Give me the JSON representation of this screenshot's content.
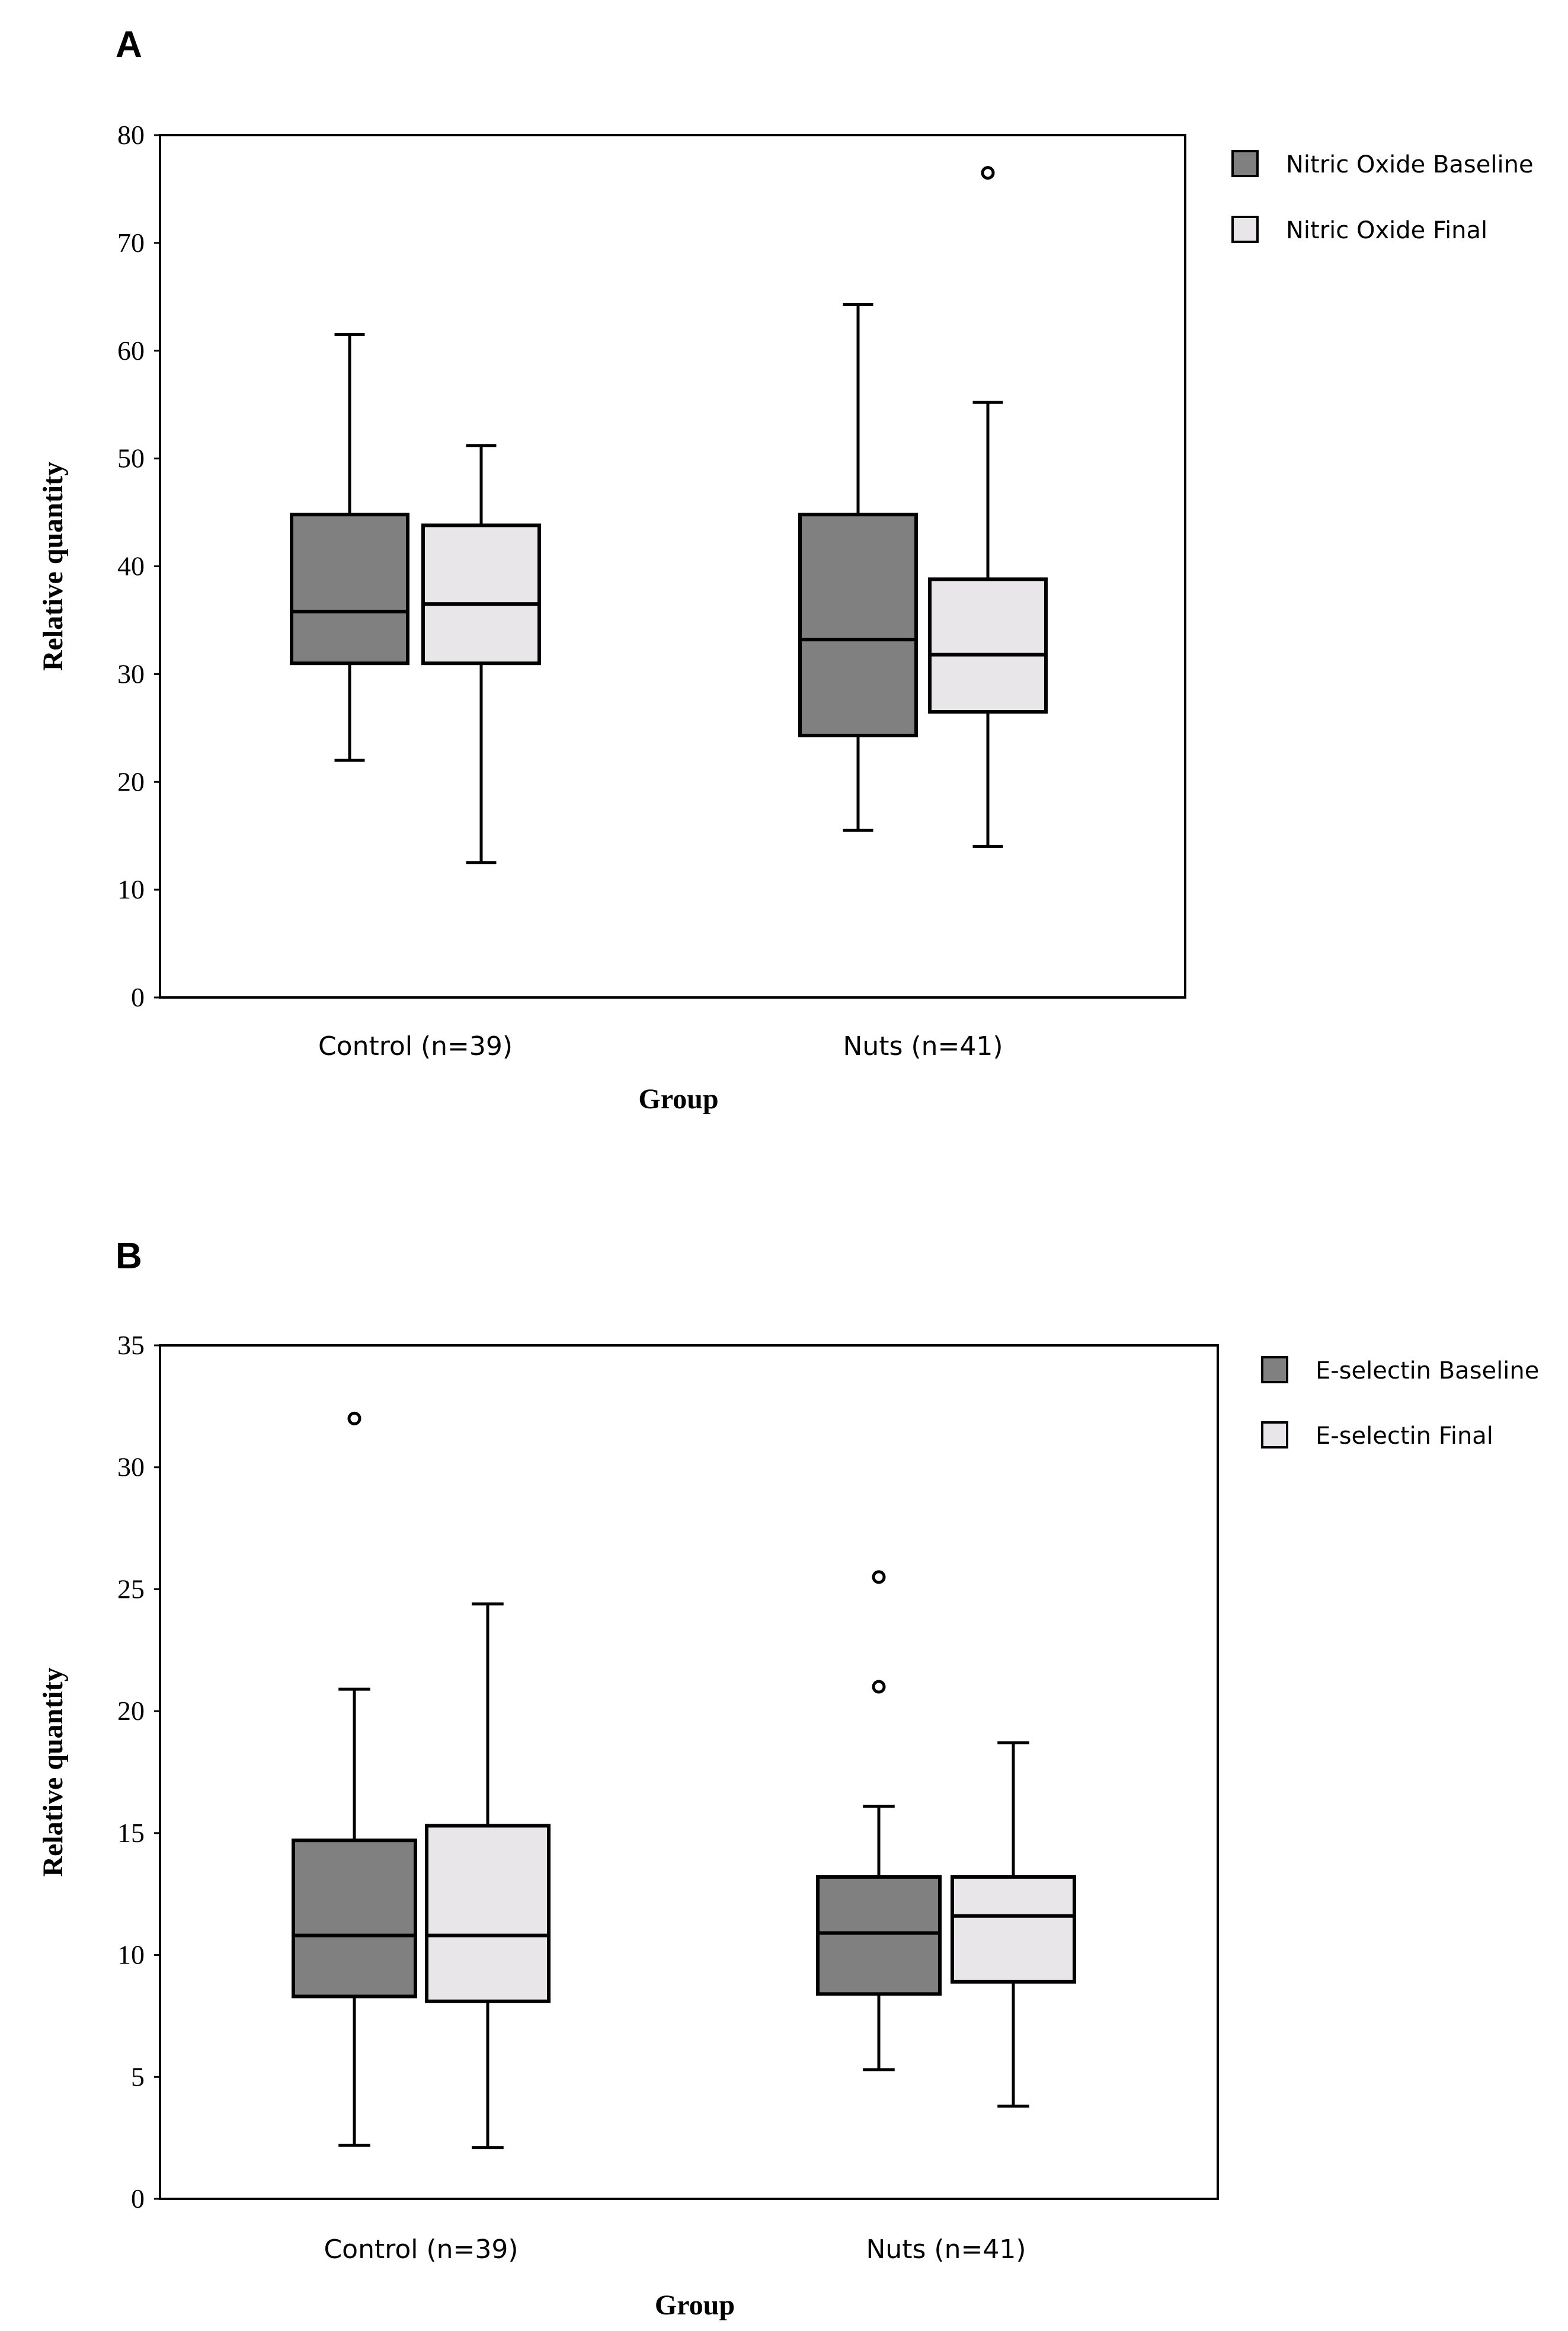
{
  "chart_data": [
    {
      "panel": "A",
      "type": "boxplot",
      "ylabel": "Relative quantity",
      "xlabel": "Group",
      "ylim": [
        0,
        80
      ],
      "yticks": [
        0,
        10,
        20,
        30,
        40,
        50,
        60,
        70,
        80
      ],
      "categories": [
        "Control (n=39)",
        "Nuts (n=41)"
      ],
      "series": [
        {
          "name": "Nitric Oxide Baseline",
          "color": "#808080",
          "boxes": [
            {
              "whisker_low": 22,
              "q1": 31,
              "median": 35.8,
              "q3": 44.8,
              "whisker_high": 61.5,
              "outliers": []
            },
            {
              "whisker_low": 15.5,
              "q1": 24.3,
              "median": 33.2,
              "q3": 44.8,
              "whisker_high": 64.3,
              "outliers": []
            }
          ]
        },
        {
          "name": "Nitric Oxide Final",
          "color": "#e8e6e8",
          "boxes": [
            {
              "whisker_low": 12.5,
              "q1": 31,
              "median": 36.5,
              "q3": 43.8,
              "whisker_high": 51.2,
              "outliers": []
            },
            {
              "whisker_low": 14,
              "q1": 26.5,
              "median": 31.8,
              "q3": 38.8,
              "whisker_high": 55.2,
              "outliers": [
                76.5
              ]
            }
          ]
        }
      ]
    },
    {
      "panel": "B",
      "type": "boxplot",
      "ylabel": "Relative quantity",
      "xlabel": "Group",
      "ylim": [
        0,
        35
      ],
      "yticks": [
        0,
        5,
        10,
        15,
        20,
        25,
        30,
        35
      ],
      "categories": [
        "Control (n=39)",
        "Nuts (n=41)"
      ],
      "series": [
        {
          "name": "E-selectin Baseline",
          "color": "#808080",
          "boxes": [
            {
              "whisker_low": 2.2,
              "q1": 8.3,
              "median": 10.8,
              "q3": 14.7,
              "whisker_high": 20.9,
              "outliers": [
                32
              ]
            },
            {
              "whisker_low": 5.3,
              "q1": 8.4,
              "median": 10.9,
              "q3": 13.2,
              "whisker_high": 16.1,
              "outliers": [
                21,
                25.5
              ]
            }
          ]
        },
        {
          "name": "E-selectin Final",
          "color": "#e8e6e8",
          "boxes": [
            {
              "whisker_low": 2.1,
              "q1": 8.1,
              "median": 10.8,
              "q3": 15.3,
              "whisker_high": 24.4,
              "outliers": []
            },
            {
              "whisker_low": 3.8,
              "q1": 8.9,
              "median": 11.6,
              "q3": 13.2,
              "whisker_high": 18.7,
              "outliers": []
            }
          ]
        }
      ]
    }
  ]
}
